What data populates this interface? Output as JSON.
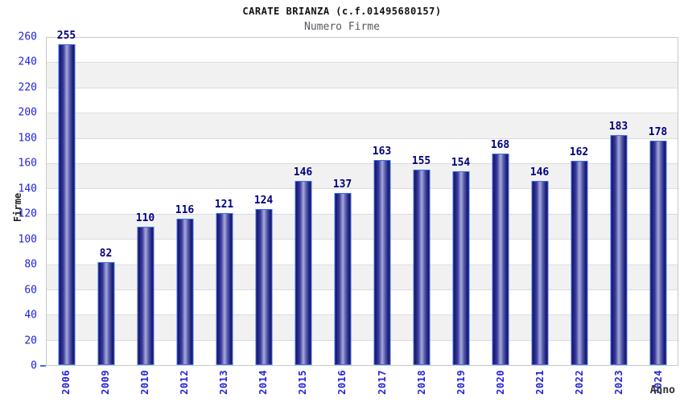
{
  "header": {
    "title": "CARATE BRIANZA (c.f.01495680157)",
    "subtitle": "Numero Firme"
  },
  "chart_data": {
    "type": "bar",
    "title": "CARATE BRIANZA (c.f.01495680157)",
    "subtitle": "Numero Firme",
    "xlabel": "Anno",
    "ylabel": "Firme",
    "categories": [
      "2006",
      "2009",
      "2010",
      "2012",
      "2013",
      "2014",
      "2015",
      "2016",
      "2017",
      "2018",
      "2019",
      "2020",
      "2021",
      "2022",
      "2023",
      "2024"
    ],
    "values": [
      255,
      82,
      110,
      116,
      121,
      124,
      146,
      137,
      163,
      155,
      154,
      168,
      146,
      162,
      183,
      178
    ],
    "ylim": [
      0,
      260
    ],
    "ytick_step": 20,
    "yticks": [
      0,
      20,
      40,
      60,
      80,
      100,
      120,
      140,
      160,
      180,
      200,
      220,
      240,
      260
    ],
    "grid": true,
    "legend": false,
    "band_fill": "alternating horizontal 20-unit bands",
    "colors": {
      "bar_border": "#3d6ef5",
      "bar_dark": "#16165e",
      "bar_light": "#a6acd8",
      "axis_tick_label": "#2323d7",
      "value_label": "#00007d",
      "band_gray": "#f1f1f1",
      "band_white": "#ffffff",
      "grid_line": "#dcdcdc",
      "plot_border": "#c8c8c8",
      "subtitle": "#55585e",
      "title": "#111111"
    }
  }
}
